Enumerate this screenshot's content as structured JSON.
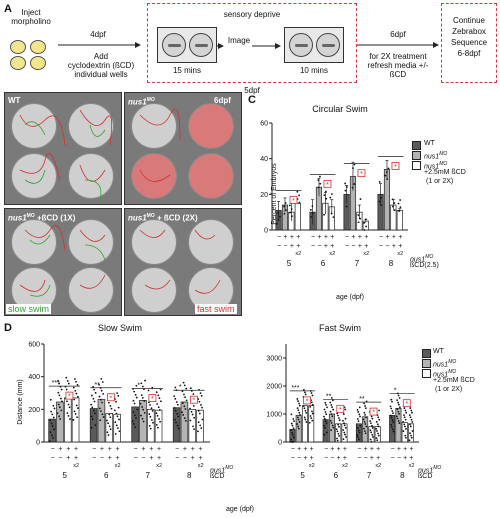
{
  "panelA": {
    "letter": "A",
    "step1": "Inject morpholino",
    "arrow1": "4dpf",
    "step2_line1": "Add",
    "step2_line2": "cyclodextrin (ßCD)",
    "step2_line3": "individual wells",
    "box_title": "sensory deprive",
    "box_left_time": "15 mins",
    "box_middle": "Image",
    "box_right_time": "10 mins",
    "under_box": "5dpf",
    "arrow3": "6dpf",
    "step3_line1": "for 2X treatment",
    "step3_line2": "refresh media +/-",
    "step3_line3": "ßCD",
    "final_line1": "Continue",
    "final_line2": "Zebrabox",
    "final_line3": "Sequence",
    "final_line4": "6-8dpf"
  },
  "panelB": {
    "letter": "B",
    "wt": "WT",
    "nus1": "nus1",
    "nus1_sup": "MO",
    "age": "6dpf",
    "ll_suffix": "+ßCD (1X)",
    "lr_suffix": "+ ßCD (2X)",
    "slow_label": "slow swim",
    "fast_label": "fast swim",
    "slow_color": "#2aa52a",
    "fast_color": "#d23030"
  },
  "panelC": {
    "letter": "C",
    "title": "Circular Swim",
    "ylabel": "Percent of Embryos",
    "xlabel": "age (dpf)",
    "legend": [
      "WT",
      "nus1",
      "nus1"
    ],
    "legend_sup": "MO",
    "legend_extra_1": "+2.5mM ßCD",
    "legend_extra_2": "(1 or 2X)",
    "row1": [
      "−",
      "+",
      "+",
      "+"
    ],
    "row2": [
      "−",
      "−",
      "+",
      "+"
    ],
    "row_label1": "nus1",
    "row_label1_sup": "MO",
    "row_label2": "ßCD(2.5)",
    "x2": "x2",
    "sig": "*"
  },
  "panelD": {
    "letter": "D",
    "slow_title": "Slow Swim",
    "fast_title": "Fast Swim",
    "ylabel": "Distance (mm)",
    "xlabel": "age (dpf)",
    "stars3": "***",
    "stars2": "**",
    "stars1": "*",
    "legend": [
      "WT",
      "nus1",
      "nus1"
    ],
    "legend_sup": "MO",
    "legend_extra_1": "+2.5mM ßCD",
    "legend_extra_2": "(1 or 2X)",
    "row_label1": "nus1",
    "row_label1_sup": "MO",
    "row_label2": "ßCD",
    "x2": "x2"
  },
  "chart_data": [
    {
      "type": "bar",
      "title": "Circular Swim",
      "xlabel": "age (dpf)",
      "ylabel": "Percent of Embryos",
      "ylim": [
        0,
        60
      ],
      "categories": [
        "5",
        "6",
        "7",
        "8"
      ],
      "series": [
        {
          "name": "WT",
          "values": [
            11,
            10,
            20,
            20
          ]
        },
        {
          "name": "nus1 MO",
          "values": [
            14,
            24,
            30,
            34
          ]
        },
        {
          "name": "nus1 MO +2.5mM ßCD (1X)",
          "values": [
            10,
            15,
            10,
            14
          ]
        },
        {
          "name": "nus1 MO +2.5mM ßCD (2X)",
          "values": [
            15,
            13,
            5,
            11
          ]
        }
      ],
      "errors": [
        [
          5,
          7,
          5,
          6
        ],
        [
          4,
          5,
          8,
          5
        ],
        [
          5,
          6,
          4,
          3
        ],
        [
          0,
          4,
          1,
          1
        ]
      ],
      "colors": [
        "#5a5a5a",
        "#b4b4b4",
        "#ffffff",
        "#ffffff"
      ]
    },
    {
      "type": "bar",
      "title": "Slow Swim",
      "xlabel": "age (dpf)",
      "ylabel": "Distance (mm)",
      "ylim": [
        0,
        600
      ],
      "categories": [
        "5",
        "6",
        "7",
        "8"
      ],
      "series": [
        {
          "name": "WT",
          "values": [
            140,
            205,
            215,
            210
          ]
        },
        {
          "name": "nus1 MO",
          "values": [
            245,
            260,
            255,
            245
          ]
        },
        {
          "name": "nus1 MO +2.5mM ßCD (1X)",
          "values": [
            270,
            175,
            200,
            200
          ]
        },
        {
          "name": "nus1 MO +2.5mM ßCD (2X)",
          "values": [
            270,
            170,
            195,
            195
          ]
        }
      ],
      "colors": [
        "#5a5a5a",
        "#b4b4b4",
        "#ffffff",
        "#ffffff"
      ]
    },
    {
      "type": "bar",
      "title": "Fast Swim",
      "xlabel": "age (dpf)",
      "ylabel": "",
      "ylim": [
        0,
        3500
      ],
      "categories": [
        "5",
        "6",
        "7",
        "8"
      ],
      "series": [
        {
          "name": "WT",
          "values": [
            450,
            800,
            650,
            950
          ]
        },
        {
          "name": "nus1 MO",
          "values": [
            950,
            1000,
            900,
            1200
          ]
        },
        {
          "name": "nus1 MO +2.5mM ßCD (1X)",
          "values": [
            1300,
            650,
            550,
            700
          ]
        },
        {
          "name": "nus1 MO +2.5mM ßCD (2X)",
          "values": [
            1300,
            650,
            550,
            650
          ]
        }
      ],
      "colors": [
        "#5a5a5a",
        "#b4b4b4",
        "#ffffff",
        "#ffffff"
      ]
    }
  ]
}
